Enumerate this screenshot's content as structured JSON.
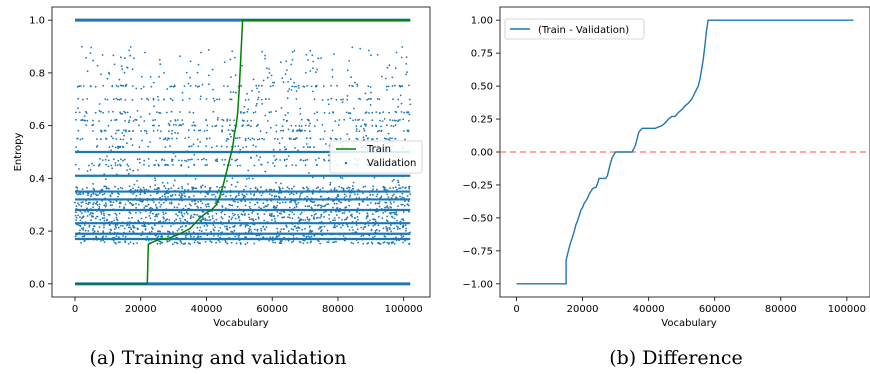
{
  "chart_data": [
    {
      "type": "scatter",
      "xlabel": "Vocabulary",
      "ylabel": "Entropy",
      "xlim": [
        -7000,
        108000
      ],
      "ylim": [
        -0.05,
        1.05
      ],
      "xticks": [
        0,
        20000,
        40000,
        60000,
        80000,
        100000
      ],
      "yticks": [
        0.0,
        0.2,
        0.4,
        0.6,
        0.8,
        1.0
      ],
      "grid": false,
      "legend_position": "center-right",
      "caption": "(a) Training and validation",
      "series": [
        {
          "name": "Train",
          "kind": "line",
          "color": "#008000",
          "x": [
            0,
            22000,
            22300,
            24000,
            26000,
            28000,
            30000,
            32000,
            33500,
            35000,
            36500,
            38000,
            40000,
            41500,
            43000,
            44000,
            45000,
            46000,
            47000,
            48000,
            48500,
            49000,
            49500,
            50000,
            51000,
            102000
          ],
          "y": [
            0.0,
            0.0,
            0.15,
            0.16,
            0.17,
            0.17,
            0.18,
            0.19,
            0.2,
            0.21,
            0.23,
            0.25,
            0.27,
            0.28,
            0.3,
            0.33,
            0.37,
            0.42,
            0.47,
            0.52,
            0.57,
            0.6,
            0.65,
            0.75,
            1.0,
            1.0
          ]
        },
        {
          "name": "Validation",
          "kind": "scatter",
          "color": "#1f77b4",
          "x_range": [
            0,
            102000
          ],
          "solid_bands": [
            0.0,
            1.0,
            0.17,
            0.19,
            0.23,
            0.28,
            0.32,
            0.35,
            0.41,
            0.5
          ],
          "dense_range": [
            0.15,
            0.37
          ],
          "sparse_range": [
            0.37,
            0.9
          ]
        }
      ]
    },
    {
      "type": "line",
      "xlabel": "Vocabulary",
      "ylabel": "",
      "xlim": [
        -5000,
        107000
      ],
      "ylim": [
        -1.1,
        1.1
      ],
      "xticks": [
        0,
        20000,
        40000,
        60000,
        80000,
        100000
      ],
      "yticks": [
        -1.0,
        -0.75,
        -0.5,
        -0.25,
        0.0,
        0.25,
        0.5,
        0.75,
        1.0
      ],
      "grid": false,
      "legend_position": "top-left",
      "caption": "(b) Difference",
      "series": [
        {
          "name": "(Train - Validation)",
          "color": "#1f77b4",
          "x": [
            0,
            15000,
            15000,
            16000,
            16500,
            17000,
            17500,
            18000,
            18500,
            19000,
            19500,
            20000,
            20500,
            21000,
            21500,
            22000,
            22500,
            23000,
            23500,
            24000,
            24500,
            25000,
            25500,
            26000,
            27000,
            27500,
            28000,
            28500,
            29000,
            30000,
            32000,
            34000,
            35000,
            36000,
            37000,
            38000,
            40000,
            42000,
            44000,
            45000,
            46000,
            47000,
            48000,
            49000,
            50000,
            51000,
            52000,
            53000,
            54000,
            55000,
            55500,
            56000,
            56500,
            57000,
            57500,
            58000,
            102000
          ],
          "y": [
            -1.0,
            -1.0,
            -0.82,
            -0.72,
            -0.68,
            -0.64,
            -0.6,
            -0.55,
            -0.52,
            -0.48,
            -0.44,
            -0.42,
            -0.39,
            -0.37,
            -0.35,
            -0.32,
            -0.3,
            -0.28,
            -0.27,
            -0.27,
            -0.24,
            -0.2,
            -0.2,
            -0.2,
            -0.2,
            -0.18,
            -0.13,
            -0.08,
            -0.04,
            0.0,
            0.0,
            0.0,
            0.0,
            0.05,
            0.15,
            0.18,
            0.18,
            0.18,
            0.2,
            0.22,
            0.25,
            0.27,
            0.27,
            0.3,
            0.32,
            0.35,
            0.37,
            0.4,
            0.45,
            0.5,
            0.55,
            0.62,
            0.7,
            0.8,
            0.92,
            1.0,
            1.0
          ]
        },
        {
          "name": "",
          "kind": "reference-line",
          "color": "#ff4d4d",
          "style": "dashed",
          "y_value": 0.0
        }
      ]
    }
  ]
}
